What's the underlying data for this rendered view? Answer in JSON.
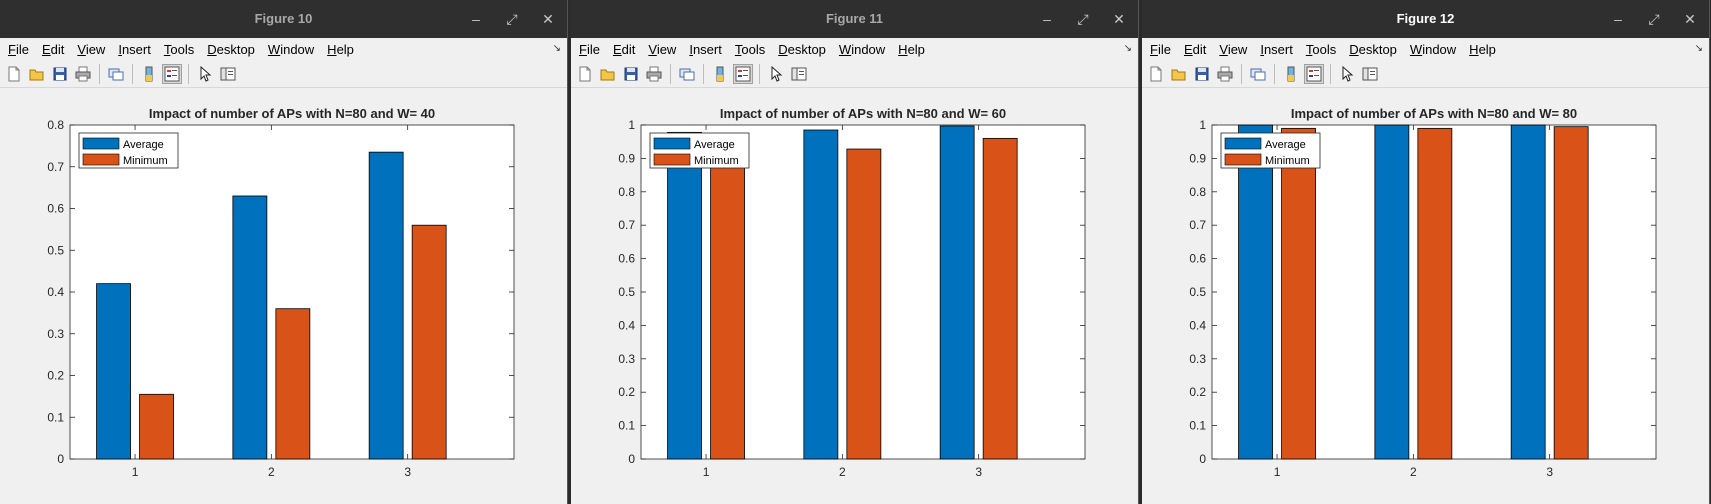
{
  "menus": [
    "File",
    "Edit",
    "View",
    "Insert",
    "Tools",
    "Desktop",
    "Window",
    "Help"
  ],
  "colors": {
    "average": "#0072BD",
    "minimum": "#D95319"
  },
  "windows": [
    {
      "title": "Figure 10",
      "active": false,
      "chart_data": {
        "type": "bar",
        "title": "Impact of number of APs with N=80 and W= 40",
        "categories": [
          "1",
          "2",
          "3"
        ],
        "series": [
          {
            "name": "Average",
            "values": [
              0.42,
              0.63,
              0.735
            ]
          },
          {
            "name": "Minimum",
            "values": [
              0.155,
              0.36,
              0.56
            ]
          }
        ],
        "ylim": [
          0,
          0.8
        ],
        "yticks": [
          "0",
          "0.1",
          "0.2",
          "0.3",
          "0.4",
          "0.5",
          "0.6",
          "0.7",
          "0.8"
        ],
        "legend": "top-left",
        "grid": false
      }
    },
    {
      "title": "Figure 11",
      "active": false,
      "chart_data": {
        "type": "bar",
        "title": "Impact of number of APs with N=80 and W= 60",
        "categories": [
          "1",
          "2",
          "3"
        ],
        "series": [
          {
            "name": "Average",
            "values": [
              0.978,
              0.985,
              0.997
            ]
          },
          {
            "name": "Minimum",
            "values": [
              0.89,
              0.928,
              0.96
            ]
          }
        ],
        "ylim": [
          0,
          1
        ],
        "yticks": [
          "0",
          "0.1",
          "0.2",
          "0.3",
          "0.4",
          "0.5",
          "0.6",
          "0.7",
          "0.8",
          "0.9",
          "1"
        ],
        "legend": "top-left",
        "grid": false
      }
    },
    {
      "title": "Figure 12",
      "active": true,
      "chart_data": {
        "type": "bar",
        "title": "Impact of number of APs with N=80 and W= 80",
        "categories": [
          "1",
          "2",
          "3"
        ],
        "series": [
          {
            "name": "Average",
            "values": [
              1.0,
              1.0,
              1.0
            ]
          },
          {
            "name": "Minimum",
            "values": [
              0.99,
              0.99,
              0.995
            ]
          }
        ],
        "ylim": [
          0,
          1
        ],
        "yticks": [
          "0",
          "0.1",
          "0.2",
          "0.3",
          "0.4",
          "0.5",
          "0.6",
          "0.7",
          "0.8",
          "0.9",
          "1"
        ],
        "legend": "top-left",
        "grid": false
      }
    }
  ]
}
